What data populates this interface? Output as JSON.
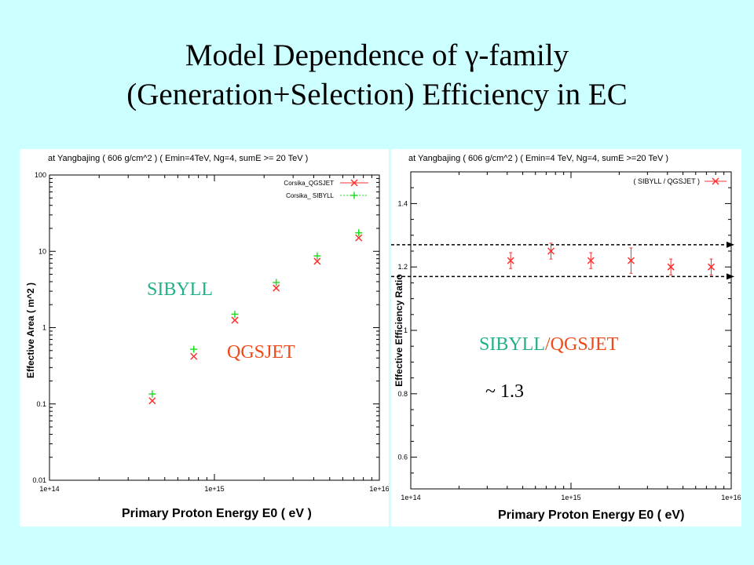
{
  "title": {
    "line1_prefix": "Model Dependence of ",
    "line1_symbol": "γ",
    "line1_suffix": "-family",
    "line2": "(Generation+Selection) Efficiency in EC"
  },
  "colors": {
    "background": "#ccffff",
    "qgsjet": "#f04a1a",
    "sibyll": "#22b08a",
    "qgs_marker": "#ff3030",
    "sib_marker": "#22dd22"
  },
  "overlays": {
    "sibyll": "SIBYLL",
    "qgsjet": "QGSJET",
    "ratio_sib": "SIBYLL",
    "ratio_sep": "/",
    "ratio_qgs": "QGSJET",
    "approx": "~ 1.3"
  },
  "chart_data": [
    {
      "type": "scatter",
      "header": "at  Yangbajing  ( 606 g/cm^2 )  ( Emin=4TeV, Ng=4, sumE >= 20 TeV )",
      "xlabel": "Primary  Proton  Energy  E0 ( eV )",
      "ylabel": "Effective  Area  ( m^2 )",
      "xscale": "log",
      "yscale": "log",
      "xlim": [
        100000000000000.0,
        1e+16
      ],
      "ylim": [
        0.01,
        100
      ],
      "x_ticks": [
        "1e+14",
        "1e+15",
        "1e+16"
      ],
      "y_ticks": [
        "0.01",
        "0.1",
        "1",
        "10",
        "100"
      ],
      "legend_position": "top-right",
      "series": [
        {
          "name": "Corsika_QGSJET",
          "x": [
            420000000000000.0,
            750000000000000.0,
            1330000000000000.0,
            2370000000000000.0,
            4200000000000000.0,
            7500000000000000.0
          ],
          "y": [
            0.11,
            0.42,
            1.25,
            3.3,
            7.4,
            15.0
          ]
        },
        {
          "name": "Corsika_ SIBYLL",
          "x": [
            420000000000000.0,
            750000000000000.0,
            1330000000000000.0,
            2370000000000000.0,
            4200000000000000.0,
            7500000000000000.0
          ],
          "y": [
            0.135,
            0.52,
            1.5,
            3.9,
            8.7,
            17.5
          ]
        }
      ]
    },
    {
      "type": "scatter",
      "header": "at  Yangbajing  ( 606 g/cm^2 )  ( Emin=4 TeV, Ng=4, sumE >=20 TeV )",
      "xlabel": "Primary  Proton  Energy  E0 ( eV)",
      "ylabel": "Effective  Efficiency  Ratio",
      "xscale": "log",
      "xlim": [
        100000000000000.0,
        1e+16
      ],
      "ylim": [
        0.5,
        1.5
      ],
      "x_ticks": [
        "1e+14",
        "1e+15",
        "1e+16"
      ],
      "y_ticks": [
        "0.6",
        "0.8",
        "1",
        "1.2",
        "1.4"
      ],
      "legend_position": "top-right",
      "reference_lines": [
        1.27,
        1.17
      ],
      "series": [
        {
          "name": "( SIBYLL / QGSJET )",
          "x": [
            420000000000000.0,
            750000000000000.0,
            1330000000000000.0,
            2370000000000000.0,
            4200000000000000.0,
            7500000000000000.0
          ],
          "y": [
            1.22,
            1.25,
            1.22,
            1.22,
            1.2,
            1.2
          ],
          "err": [
            0.025,
            0.025,
            0.025,
            0.04,
            0.025,
            0.025
          ]
        }
      ]
    }
  ]
}
